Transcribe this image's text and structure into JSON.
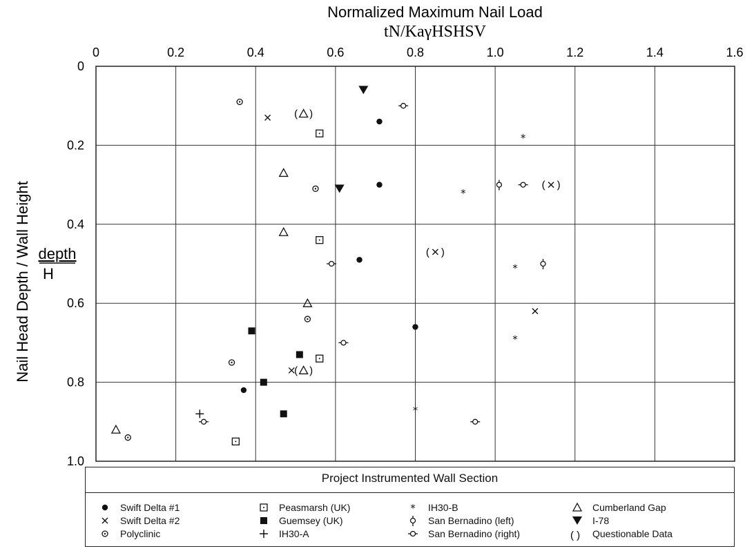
{
  "chart_data": {
    "type": "scatter",
    "title": "Normalized Maximum Nail Load",
    "subtitle": "tN/KaγHSHSV",
    "xlabel": "",
    "ylabel": "Nail Head Depth / Wall Height",
    "ylabel_fraction": {
      "numerator": "depth",
      "denominator": "H"
    },
    "xlim": [
      0,
      1.6
    ],
    "ylim": [
      0,
      1.0
    ],
    "y_inverted": true,
    "grid": true,
    "xticks": [
      "0",
      "0.2",
      "0.4",
      "0.6",
      "0.8",
      "1.0",
      "1.2",
      "1.4",
      "1.6"
    ],
    "yticks": [
      "0",
      "0.2",
      "0.4",
      "0.6",
      "0.8",
      "1.0"
    ],
    "legend_title": "Project Instrumented Wall Section",
    "legend_placement": "bottom",
    "series": [
      {
        "name": "Swift Delta #1",
        "marker": "filled-circle",
        "points": [
          [
            0.71,
            0.14
          ],
          [
            0.71,
            0.3
          ],
          [
            0.66,
            0.49
          ],
          [
            0.8,
            0.66
          ],
          [
            0.37,
            0.82
          ]
        ]
      },
      {
        "name": "Swift Delta #2",
        "marker": "x",
        "points": [
          [
            0.43,
            0.13
          ],
          [
            0.49,
            0.77
          ],
          [
            1.1,
            0.62
          ]
        ]
      },
      {
        "name": "Polyclinic",
        "marker": "dotted-circle",
        "points": [
          [
            0.36,
            0.09
          ],
          [
            0.55,
            0.31
          ],
          [
            0.53,
            0.64
          ],
          [
            0.34,
            0.75
          ],
          [
            0.08,
            0.94
          ]
        ]
      },
      {
        "name": "Peasmarsh (UK)",
        "marker": "open-square",
        "points": [
          [
            0.56,
            0.17
          ],
          [
            0.56,
            0.44
          ],
          [
            0.56,
            0.74
          ],
          [
            0.35,
            0.95
          ]
        ]
      },
      {
        "name": "Guemsey (UK)",
        "marker": "filled-square",
        "points": [
          [
            0.39,
            0.67
          ],
          [
            0.51,
            0.73
          ],
          [
            0.42,
            0.8
          ],
          [
            0.47,
            0.88
          ]
        ]
      },
      {
        "name": "IH30-A",
        "marker": "plus",
        "points": [
          [
            0.26,
            0.88
          ]
        ]
      },
      {
        "name": "IH30-B",
        "marker": "star",
        "points": [
          [
            1.07,
            0.18
          ],
          [
            0.92,
            0.32
          ],
          [
            1.05,
            0.51
          ],
          [
            1.05,
            0.69
          ],
          [
            0.8,
            0.87
          ]
        ]
      },
      {
        "name": "San Bernadino (left)",
        "marker": "circle-tick-up",
        "points": [
          [
            1.01,
            0.3
          ],
          [
            1.12,
            0.5
          ]
        ]
      },
      {
        "name": "San Bernadino (right)",
        "marker": "circle-tick-side",
        "points": [
          [
            0.77,
            0.1
          ],
          [
            1.07,
            0.3
          ],
          [
            0.59,
            0.5
          ],
          [
            0.62,
            0.7
          ],
          [
            0.27,
            0.9
          ],
          [
            0.95,
            0.9
          ]
        ]
      },
      {
        "name": "Cumberland Gap",
        "marker": "open-triangle",
        "points": [
          [
            0.47,
            0.27
          ],
          [
            0.47,
            0.42
          ],
          [
            0.53,
            0.6
          ],
          [
            0.05,
            0.92
          ]
        ]
      },
      {
        "name": "I-78",
        "marker": "filled-triangle-down",
        "points": [
          [
            0.67,
            0.06
          ],
          [
            0.61,
            0.31
          ]
        ]
      },
      {
        "name": "Questionable Data",
        "marker": "parenthesized",
        "points": [
          {
            "x": 0.52,
            "y": 0.12,
            "marker": "open-triangle"
          },
          {
            "x": 1.14,
            "y": 0.3,
            "marker": "x"
          },
          {
            "x": 0.85,
            "y": 0.47,
            "marker": "x"
          },
          {
            "x": 0.52,
            "y": 0.77,
            "marker": "open-triangle"
          }
        ]
      }
    ]
  },
  "legend": {
    "title": "Project Instrumented Wall Section",
    "items": [
      {
        "label": "Swift Delta #1",
        "marker": "filled-circle"
      },
      {
        "label": "Swift Delta #2",
        "marker": "x"
      },
      {
        "label": "Polyclinic",
        "marker": "dotted-circle"
      },
      {
        "label": "Peasmarsh (UK)",
        "marker": "open-square"
      },
      {
        "label": "Guemsey (UK)",
        "marker": "filled-square"
      },
      {
        "label": "IH30-A",
        "marker": "plus"
      },
      {
        "label": "IH30-B",
        "marker": "star"
      },
      {
        "label": "San Bernadino (left)",
        "marker": "circle-tick-up"
      },
      {
        "label": "San Bernadino (right)",
        "marker": "circle-tick-side"
      },
      {
        "label": "Cumberland Gap",
        "marker": "open-triangle"
      },
      {
        "label": "I-78",
        "marker": "filled-triangle-down"
      },
      {
        "label": "Questionable Data",
        "marker": "parentheses"
      }
    ]
  }
}
